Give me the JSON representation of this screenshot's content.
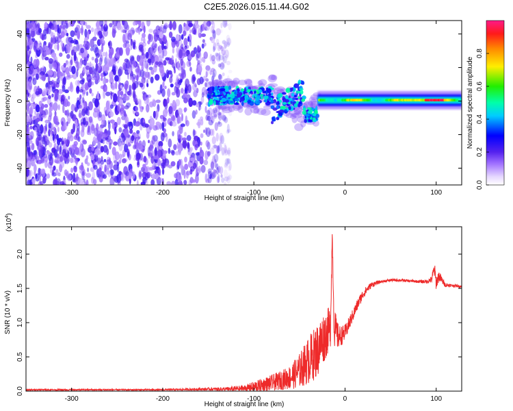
{
  "figure_title": "C2E5.2026.015.11.44.G02",
  "chart_data": [
    {
      "type": "heatmap",
      "title": "C2E5.2026.015.11.44.G02",
      "xlabel": "Height of straight line (km)",
      "ylabel": "Frequency (Hz)",
      "xlim": [
        -350,
        128
      ],
      "ylim": [
        -50,
        48
      ],
      "x_ticks": [
        -300,
        -200,
        -100,
        0,
        100
      ],
      "x_tick_labels": [
        "-300",
        "-200",
        "-100",
        "0",
        "100"
      ],
      "y_ticks": [
        -40,
        -20,
        0,
        20,
        40
      ],
      "y_tick_labels": [
        "-40",
        "-20",
        "0",
        "20",
        "40"
      ],
      "colorbar": {
        "label": "Normalized spectral amplitude",
        "range": [
          0,
          1
        ],
        "ticks": [
          0.0,
          0.2,
          0.4,
          0.6,
          0.8
        ],
        "tick_labels": [
          "0.0",
          "0.2",
          "0.4",
          "0.6",
          "0.8"
        ],
        "colormap": "rainbow"
      },
      "regions": [
        {
          "x": [
            -350,
            -150
          ],
          "freq": [
            -50,
            48
          ],
          "amplitude": [
            0.05,
            0.2
          ],
          "description": "noise"
        },
        {
          "x": [
            -150,
            -30
          ],
          "freq": [
            -14,
            10
          ],
          "amplitude": [
            0.2,
            0.55
          ]
        },
        {
          "x": [
            -30,
            128
          ],
          "freq": [
            -2,
            3
          ],
          "amplitude": [
            0.4,
            1.0
          ]
        }
      ]
    },
    {
      "type": "line",
      "xlabel": "Height of straight line (km)",
      "ylabel": "SNR (10 * v/v)",
      "multiplier_label": "(x10",
      "multiplier_exponent": "4",
      "multiplier_close": ")",
      "xlim": [
        -350,
        128
      ],
      "ylim": [
        0,
        2.4
      ],
      "x_ticks": [
        -300,
        -200,
        -100,
        0,
        100
      ],
      "x_tick_labels": [
        "-300",
        "-200",
        "-100",
        "0",
        "100"
      ],
      "y_ticks": [
        0.0,
        0.5,
        1.0,
        1.5,
        2.0
      ],
      "y_tick_labels": [
        "0.0",
        "0.5",
        "1.0",
        "1.5",
        "2.0"
      ],
      "line_color": "#ee2a2a",
      "series": [
        {
          "name": "SNR",
          "x": [
            -350,
            -300,
            -250,
            -200,
            -150,
            -130,
            -110,
            -100,
            -90,
            -80,
            -70,
            -60,
            -50,
            -40,
            -30,
            -25,
            -20,
            -16,
            -14,
            -12,
            -8,
            -5,
            0,
            5,
            10,
            15,
            20,
            25,
            30,
            40,
            50,
            60,
            70,
            80,
            90,
            95,
            98,
            100,
            103,
            110,
            120,
            128
          ],
          "y": [
            0.02,
            0.02,
            0.02,
            0.02,
            0.03,
            0.03,
            0.04,
            0.06,
            0.09,
            0.12,
            0.16,
            0.2,
            0.3,
            0.45,
            0.6,
            0.75,
            0.85,
            0.95,
            2.3,
            0.95,
            0.8,
            0.8,
            0.85,
            1.0,
            1.15,
            1.3,
            1.42,
            1.5,
            1.56,
            1.6,
            1.62,
            1.62,
            1.61,
            1.6,
            1.6,
            1.63,
            1.78,
            1.58,
            1.68,
            1.55,
            1.54,
            1.53
          ],
          "noise_amplitude": [
            0.01,
            0.01,
            0.01,
            0.01,
            0.02,
            0.03,
            0.05,
            0.08,
            0.1,
            0.12,
            0.14,
            0.18,
            0.25,
            0.35,
            0.4,
            0.38,
            0.35,
            0.3,
            0.1,
            0.3,
            0.2,
            0.15,
            0.12,
            0.1,
            0.09,
            0.08,
            0.07,
            0.05,
            0.04,
            0.02,
            0.02,
            0.02,
            0.02,
            0.02,
            0.03,
            0.05,
            0.12,
            0.1,
            0.08,
            0.03,
            0.02,
            0.02
          ]
        }
      ]
    }
  ],
  "colors": {
    "axis": "#000000",
    "line": "#ee2a2a"
  }
}
